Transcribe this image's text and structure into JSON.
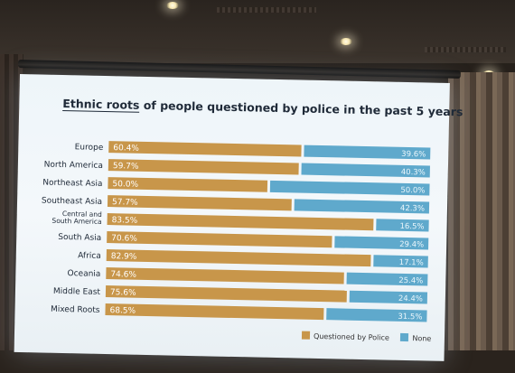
{
  "chart_data": {
    "type": "bar",
    "stacked": true,
    "orientation": "horizontal",
    "title_highlight": "Ethnic roots",
    "title_rest": " of people questioned by police  in the past 5 years",
    "categories": [
      "Europe",
      "North America",
      "Northeast Asia",
      "Southeast Asia",
      "Central and South America",
      "South Asia",
      "Africa",
      "Oceania",
      "Middle East",
      "Mixed Roots"
    ],
    "category_lines": [
      [
        "Europe"
      ],
      [
        "North America"
      ],
      [
        "Northeast Asia"
      ],
      [
        "Southeast Asia"
      ],
      [
        "Central and",
        "South America"
      ],
      [
        "South Asia"
      ],
      [
        "Africa"
      ],
      [
        "Oceania"
      ],
      [
        "Middle East"
      ],
      [
        "Mixed Roots"
      ]
    ],
    "series": [
      {
        "name": "Questioned by Police",
        "color": "#c8964a",
        "values": [
          60.4,
          59.7,
          50.0,
          57.7,
          83.5,
          70.6,
          82.9,
          74.6,
          75.6,
          68.5
        ],
        "labels": [
          "60.4%",
          "59.7%",
          "50.0%",
          "57.7%",
          "83.5%",
          "70.6%",
          "82.9%",
          "74.6%",
          "75.6%",
          "68.5%"
        ]
      },
      {
        "name": "None",
        "color": "#5fa9cc",
        "values": [
          39.6,
          40.3,
          50.0,
          42.3,
          16.5,
          29.4,
          17.1,
          25.4,
          24.4,
          31.5
        ],
        "labels": [
          "39.6%",
          "40.3%",
          "50.0%",
          "42.3%",
          "16.5%",
          "29.4%",
          "17.1%",
          "25.4%",
          "24.4%",
          "31.5%"
        ]
      }
    ],
    "xlim": [
      0,
      100
    ],
    "grid": false,
    "legend": "bottom-right"
  }
}
